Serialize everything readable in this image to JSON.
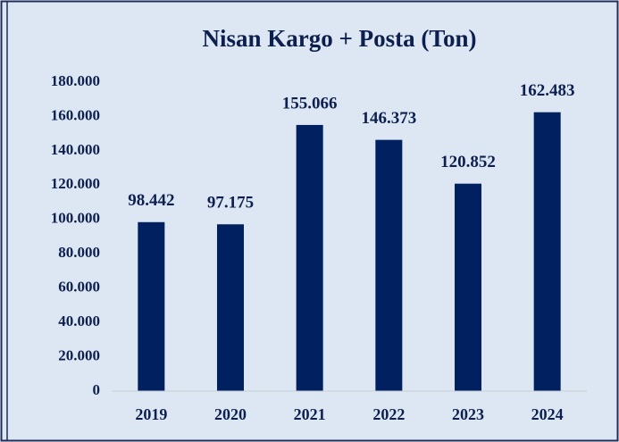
{
  "chart_data": {
    "type": "bar",
    "title": "Nisan Kargo + Posta (Ton)",
    "categories": [
      "2019",
      "2020",
      "2021",
      "2022",
      "2023",
      "2024"
    ],
    "values": [
      98442,
      97175,
      155066,
      146373,
      120852,
      162483
    ],
    "value_labels": [
      "98.442",
      "97.175",
      "155.066",
      "146.373",
      "120.852",
      "162.483"
    ],
    "color": "#002060",
    "ylim": [
      0,
      180000
    ],
    "yticks": [
      0,
      {
        "value": 20000,
        "label": "20.000"
      },
      {
        "value": 40000,
        "label": "40.000"
      },
      {
        "value": 60000,
        "label": "60.000"
      },
      {
        "value": 80000,
        "label": "80.000"
      },
      {
        "value": 100000,
        "label": "100.000"
      },
      {
        "value": 120000,
        "label": "120.000"
      },
      {
        "value": 140000,
        "label": "140.000"
      },
      {
        "value": 160000,
        "label": "160.000"
      },
      {
        "value": 180000,
        "label": "180.000"
      }
    ],
    "grid": false
  }
}
